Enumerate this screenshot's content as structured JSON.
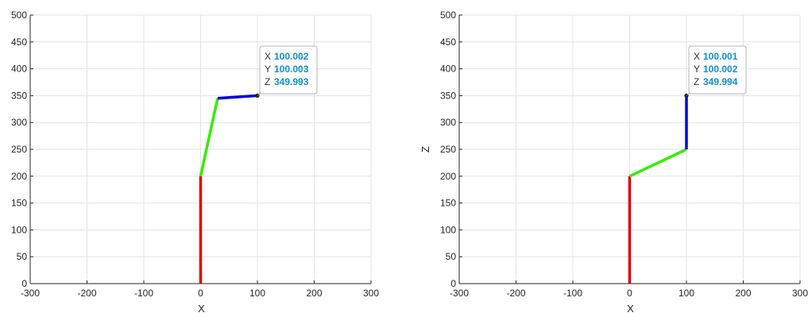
{
  "chart_data": [
    {
      "type": "line",
      "xlabel": "X",
      "ylabel": "",
      "xlim": [
        -300,
        300
      ],
      "ylim": [
        0,
        500
      ],
      "xticks": [
        "-300",
        "-200",
        "-100",
        "0",
        "100",
        "200",
        "300"
      ],
      "yticks": [
        "0",
        "50",
        "100",
        "150",
        "200",
        "250",
        "300",
        "350",
        "400",
        "450",
        "500"
      ],
      "grid": true,
      "series": [
        {
          "color": "#e00000",
          "x": [
            0,
            0
          ],
          "y": [
            0,
            200
          ]
        },
        {
          "color": "#33ee00",
          "x": [
            0,
            30
          ],
          "y": [
            200,
            345
          ]
        },
        {
          "color": "#0000dd",
          "x": [
            30,
            100
          ],
          "y": [
            345,
            350
          ]
        }
      ],
      "marker": {
        "x": 100,
        "y": 350
      },
      "datatip": [
        {
          "key": "X",
          "value": "100.002"
        },
        {
          "key": "Y",
          "value": "100.003"
        },
        {
          "key": "Z",
          "value": "349.993"
        }
      ]
    },
    {
      "type": "line",
      "xlabel": "X",
      "ylabel": "Z",
      "xlim": [
        -300,
        300
      ],
      "ylim": [
        0,
        500
      ],
      "xticks": [
        "-300",
        "-200",
        "-100",
        "0",
        "100",
        "200",
        "300"
      ],
      "yticks": [
        "0",
        "50",
        "100",
        "150",
        "200",
        "250",
        "300",
        "350",
        "400",
        "450",
        "500"
      ],
      "grid": true,
      "series": [
        {
          "color": "#e00000",
          "x": [
            0,
            0
          ],
          "y": [
            0,
            200
          ]
        },
        {
          "color": "#33ee00",
          "x": [
            0,
            100
          ],
          "y": [
            200,
            250
          ]
        },
        {
          "color": "#0000dd",
          "x": [
            100,
            100
          ],
          "y": [
            250,
            350
          ]
        }
      ],
      "marker": {
        "x": 100,
        "y": 350
      },
      "datatip": [
        {
          "key": "X",
          "value": "100.001"
        },
        {
          "key": "Y",
          "value": "100.002"
        },
        {
          "key": "Z",
          "value": "349.994"
        }
      ]
    }
  ]
}
